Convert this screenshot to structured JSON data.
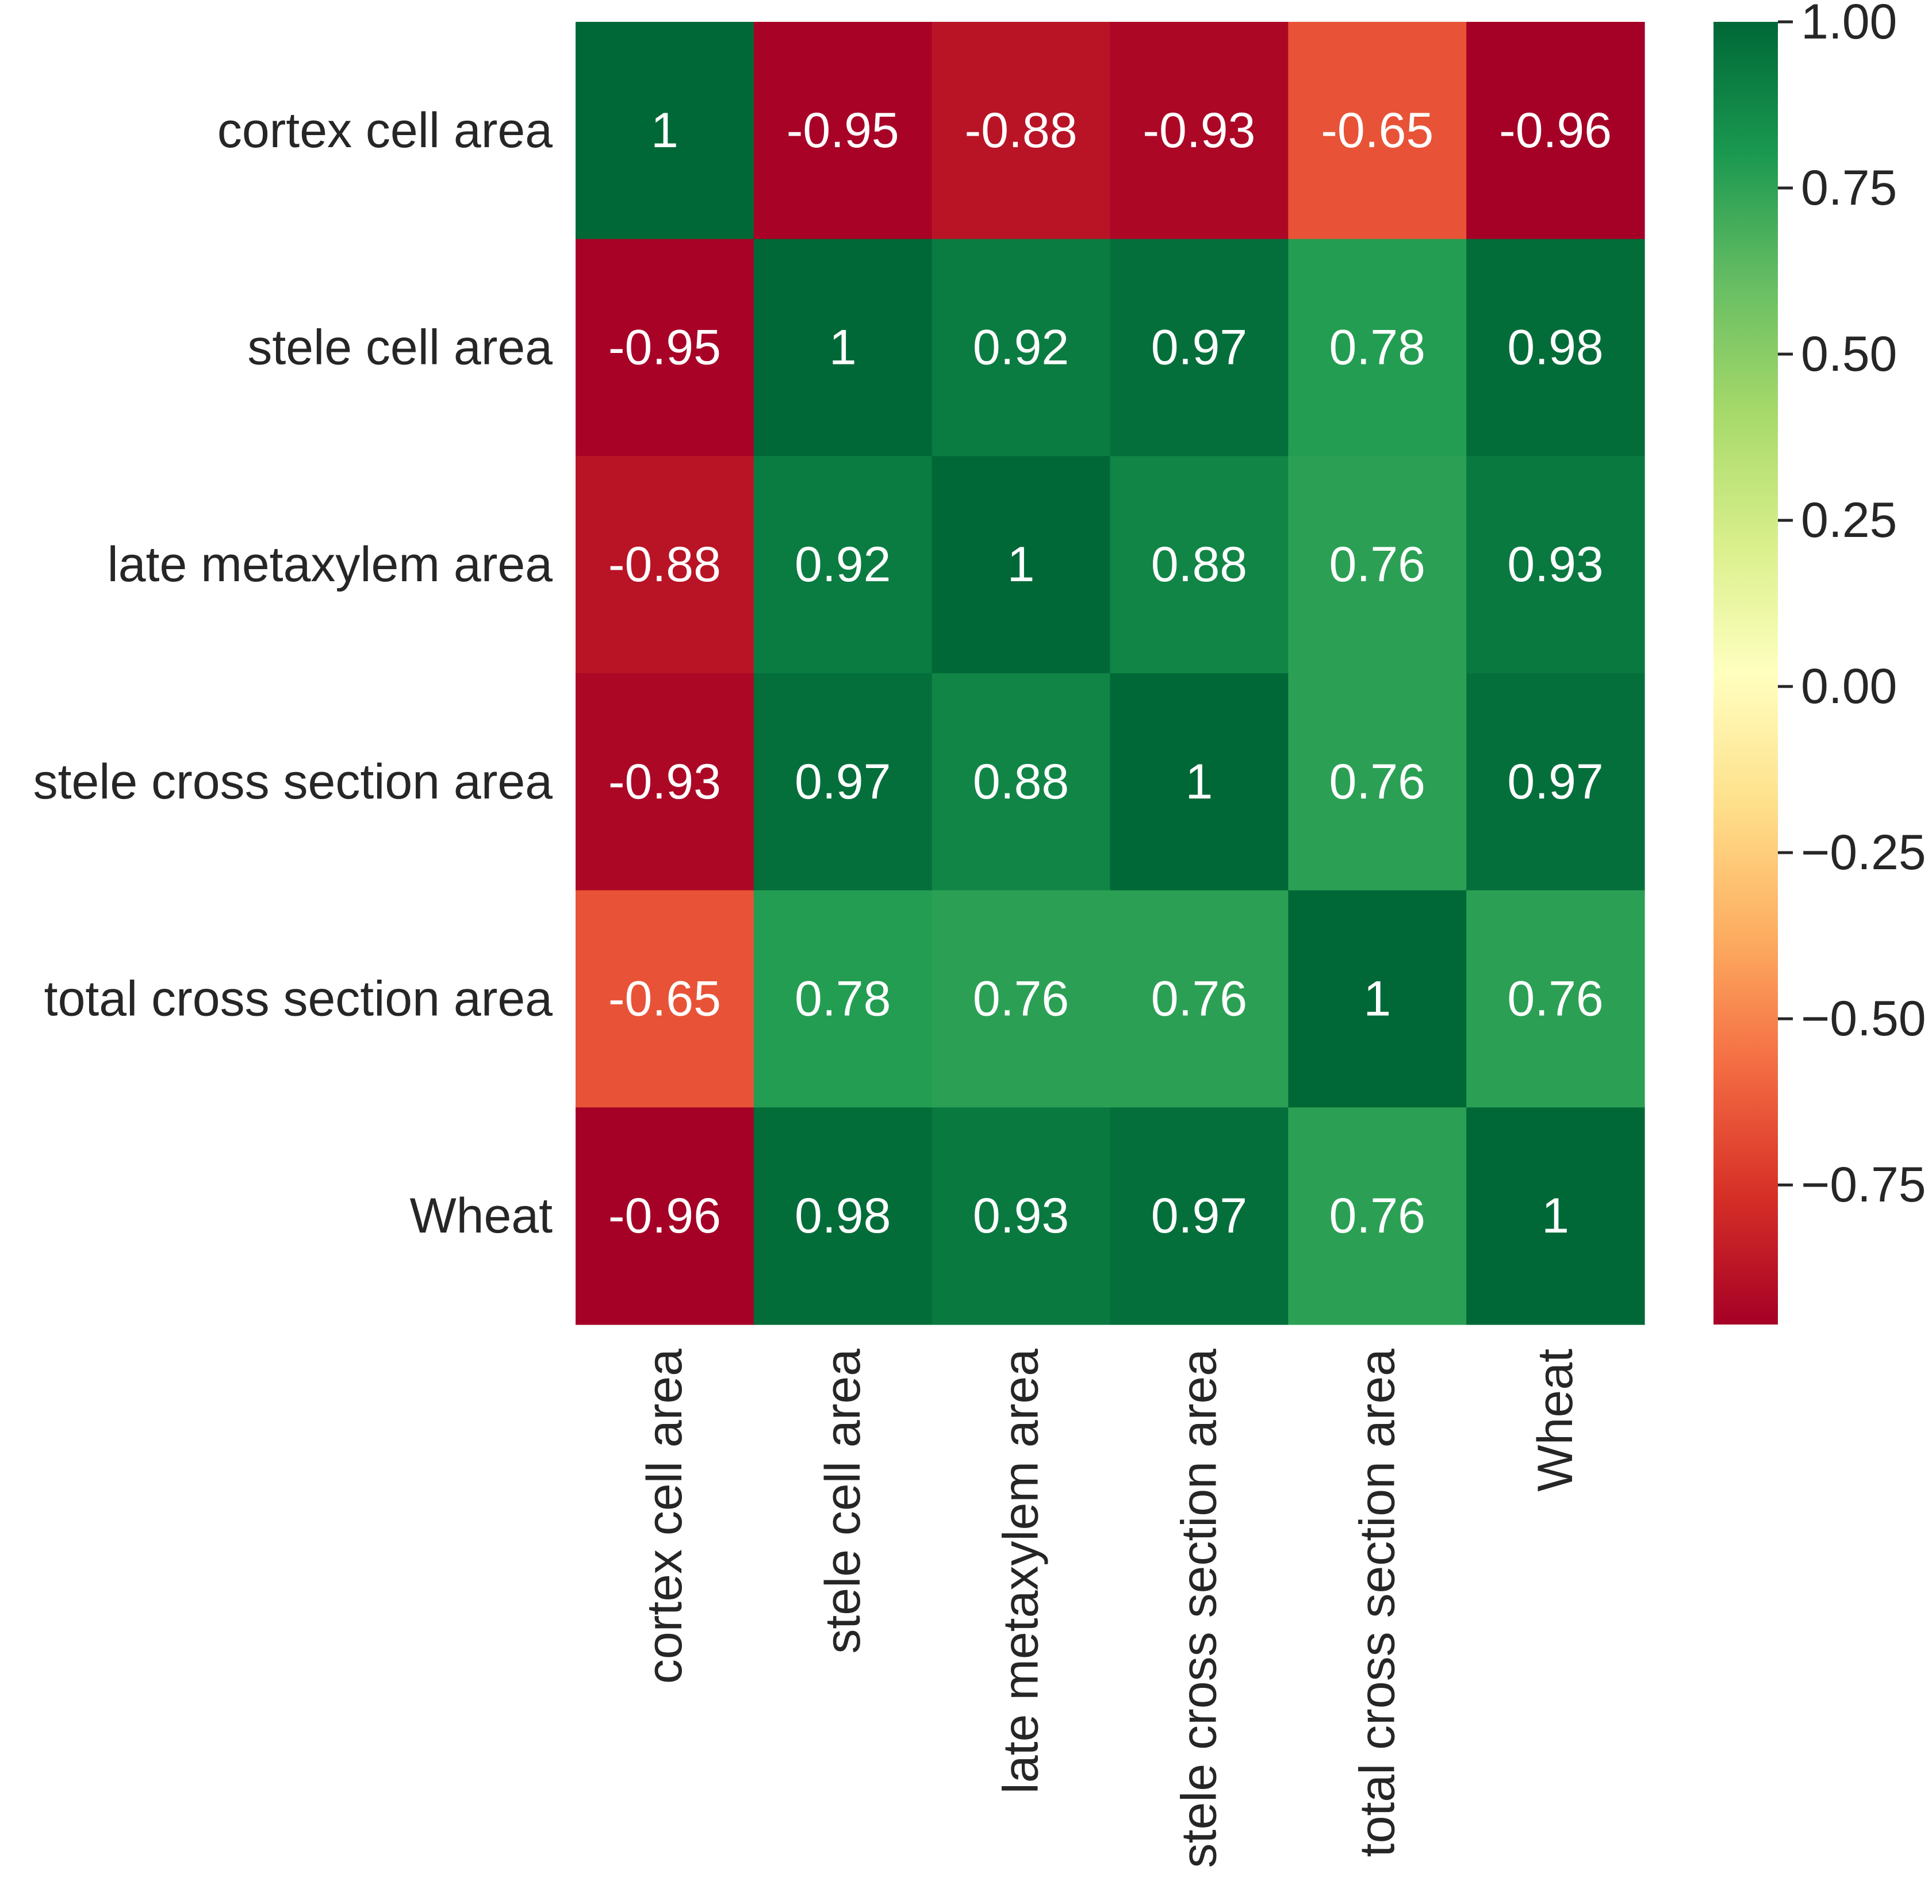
{
  "chart_data": {
    "type": "heatmap",
    "title": "",
    "rows": [
      "cortex cell area",
      "stele cell area",
      "late metaxylem area",
      "stele cross section area",
      "total cross section area",
      "Wheat"
    ],
    "columns": [
      "cortex cell area",
      "stele cell area",
      "late metaxylem area",
      "stele cross section area",
      "total cross section area",
      "Wheat"
    ],
    "values": [
      [
        1,
        -0.95,
        -0.88,
        -0.93,
        -0.65,
        -0.96
      ],
      [
        -0.95,
        1,
        0.92,
        0.97,
        0.78,
        0.98
      ],
      [
        -0.88,
        0.92,
        1,
        0.88,
        0.76,
        0.93
      ],
      [
        -0.93,
        0.97,
        0.88,
        1,
        0.76,
        0.97
      ],
      [
        -0.65,
        0.78,
        0.76,
        0.76,
        1,
        0.76
      ],
      [
        -0.96,
        0.98,
        0.93,
        0.97,
        0.76,
        1
      ]
    ],
    "cell_labels": [
      [
        "1",
        "-0.95",
        "-0.88",
        "-0.93",
        "-0.65",
        "-0.96"
      ],
      [
        "-0.95",
        "1",
        "0.92",
        "0.97",
        "0.78",
        "0.98"
      ],
      [
        "-0.88",
        "0.92",
        "1",
        "0.88",
        "0.76",
        "0.93"
      ],
      [
        "-0.93",
        "0.97",
        "0.88",
        "1",
        "0.76",
        "0.97"
      ],
      [
        "-0.65",
        "0.78",
        "0.76",
        "0.76",
        "1",
        "0.76"
      ],
      [
        "-0.96",
        "0.98",
        "0.93",
        "0.97",
        "0.76",
        "1"
      ]
    ],
    "colormap": "RdYlGn",
    "colormap_stops": [
      "#a50026",
      "#d73027",
      "#f46d43",
      "#fdae61",
      "#fee08b",
      "#ffffbf",
      "#d9ef8b",
      "#a6d96a",
      "#66bd63",
      "#1a9850",
      "#006837"
    ],
    "vmin": -0.96,
    "vmax": 1.0,
    "colorbar": {
      "ticks": [
        1.0,
        0.75,
        0.5,
        0.25,
        0.0,
        -0.25,
        -0.5,
        -0.75
      ],
      "tick_labels": [
        "1.00",
        "0.75",
        "0.50",
        "0.25",
        "0.00",
        "−0.25",
        "−0.50",
        "−0.75"
      ],
      "placement": "right"
    },
    "text_color": "#ffffff",
    "label_color": "#262626"
  }
}
